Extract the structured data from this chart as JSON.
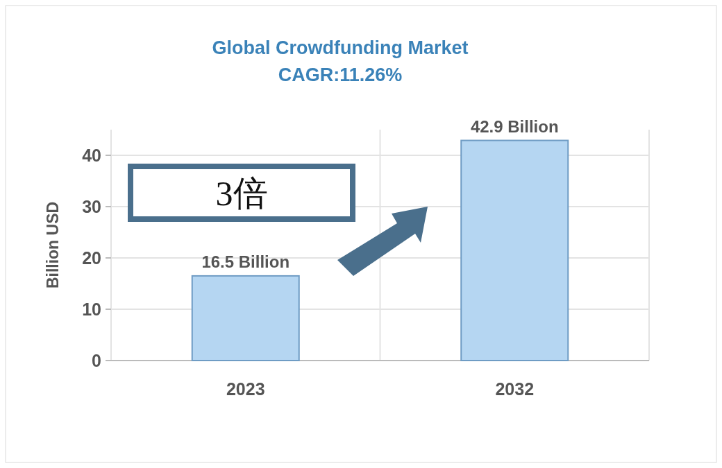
{
  "chart_data": {
    "type": "bar",
    "title": "Global Crowdfunding Market",
    "subtitle": "CAGR:11.26%",
    "ylabel": "Billion USD",
    "categories": [
      "2023",
      "2032"
    ],
    "values": [
      16.5,
      42.9
    ],
    "value_labels": [
      "16.5 Billion",
      "42.9 Billion"
    ],
    "color": "#b5d6f2",
    "ylim": [
      0,
      45
    ],
    "yticks": [
      0,
      10,
      20,
      30,
      40
    ],
    "grid": true,
    "annotations": [
      "3倍"
    ]
  }
}
